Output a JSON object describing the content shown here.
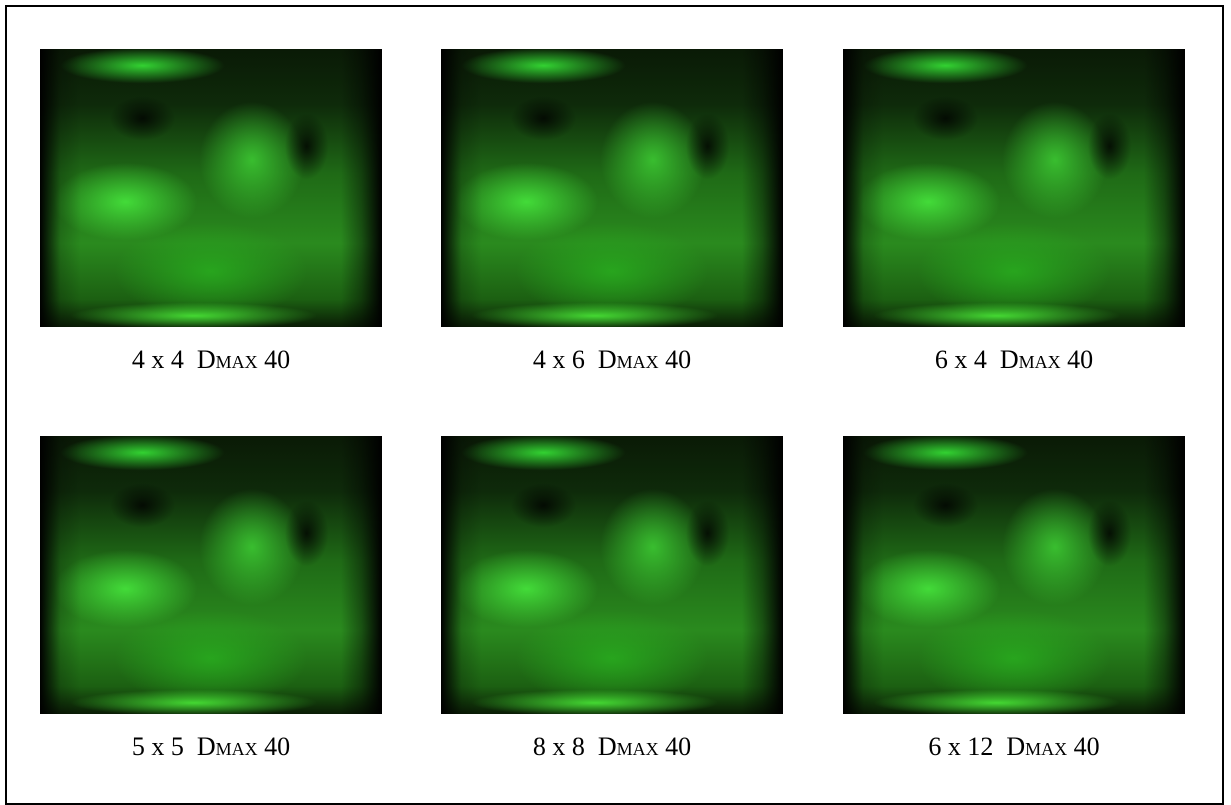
{
  "figures": [
    {
      "size": "4 x 4",
      "param": "Dmax",
      "value": "40"
    },
    {
      "size": "4 x 6",
      "param": "Dmax",
      "value": "40"
    },
    {
      "size": "6 x 4",
      "param": "Dmax",
      "value": "40"
    },
    {
      "size": "5 x 5",
      "param": "Dmax",
      "value": "40"
    },
    {
      "size": "8 x 8",
      "param": "Dmax",
      "value": "40"
    },
    {
      "size": "6 x 12",
      "param": "Dmax",
      "value": "40"
    }
  ]
}
